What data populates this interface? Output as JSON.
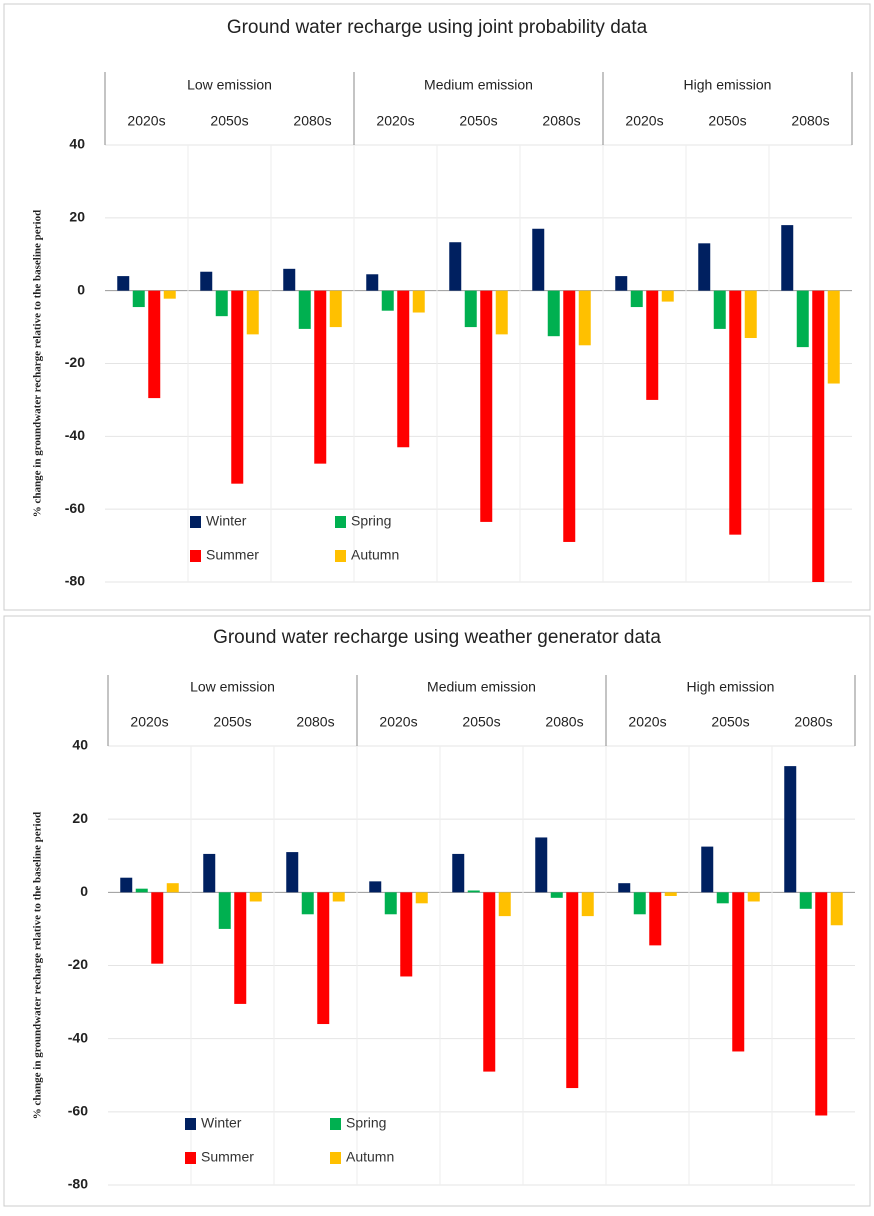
{
  "chart_data": [
    {
      "type": "bar",
      "title": "Ground water recharge using joint probability data",
      "y_label": "% change in groundwater recharge relative to the baseline period",
      "groups": [
        "Low emission",
        "Medium emission",
        "High emission"
      ],
      "categories": [
        "2020s",
        "2050s",
        "2080s",
        "2020s",
        "2050s",
        "2080s",
        "2020s",
        "2050s",
        "2080s"
      ],
      "series": [
        {
          "name": "Winter",
          "color": "#002060",
          "values": [
            4,
            5.2,
            6,
            4.5,
            13.3,
            17,
            4,
            13,
            18
          ]
        },
        {
          "name": "Spring",
          "color": "#00b050",
          "values": [
            -4.5,
            -7,
            -10.5,
            -5.5,
            -10,
            -12.5,
            -4.5,
            -10.5,
            -15.5
          ]
        },
        {
          "name": "Summer",
          "color": "#ff0000",
          "values": [
            -29.5,
            -53,
            -47.5,
            -43,
            -63.5,
            -69,
            -30,
            -67,
            -80
          ]
        },
        {
          "name": "Autumn",
          "color": "#ffc000",
          "values": [
            -2.2,
            -12,
            -10,
            -6,
            -12,
            -15,
            -3,
            -13,
            -25.5
          ]
        }
      ],
      "ylim": [
        -80,
        40
      ],
      "yticks": [
        -80,
        -60,
        -40,
        -20,
        0,
        20,
        40
      ],
      "grid": true,
      "legend": "lower left"
    },
    {
      "type": "bar",
      "title": "Ground water recharge using weather generator data",
      "y_label": "% change in groundwater recharge relative to the baseline period",
      "groups": [
        "Low emission",
        "Medium emission",
        "High emission"
      ],
      "categories": [
        "2020s",
        "2050s",
        "2080s",
        "2020s",
        "2050s",
        "2080s",
        "2020s",
        "2050s",
        "2080s"
      ],
      "series": [
        {
          "name": "Winter",
          "color": "#002060",
          "values": [
            4,
            10.5,
            11,
            3,
            10.5,
            15,
            2.5,
            12.5,
            34.5
          ]
        },
        {
          "name": "Spring",
          "color": "#00b050",
          "values": [
            1,
            -10,
            -6,
            -6,
            0.5,
            -1.5,
            -6,
            -3,
            -4.5
          ]
        },
        {
          "name": "Summer",
          "color": "#ff0000",
          "values": [
            -19.5,
            -30.5,
            -36,
            -23,
            -49,
            -53.5,
            -14.5,
            -43.5,
            -61
          ]
        },
        {
          "name": "Autumn",
          "color": "#ffc000",
          "values": [
            2.5,
            -2.5,
            -2.5,
            -3,
            -6.5,
            -6.5,
            -1,
            -2.5,
            -9
          ]
        }
      ],
      "ylim": [
        -80,
        40
      ],
      "yticks": [
        -80,
        -60,
        -40,
        -20,
        0,
        20,
        40
      ],
      "grid": true,
      "legend": "lower left"
    }
  ]
}
